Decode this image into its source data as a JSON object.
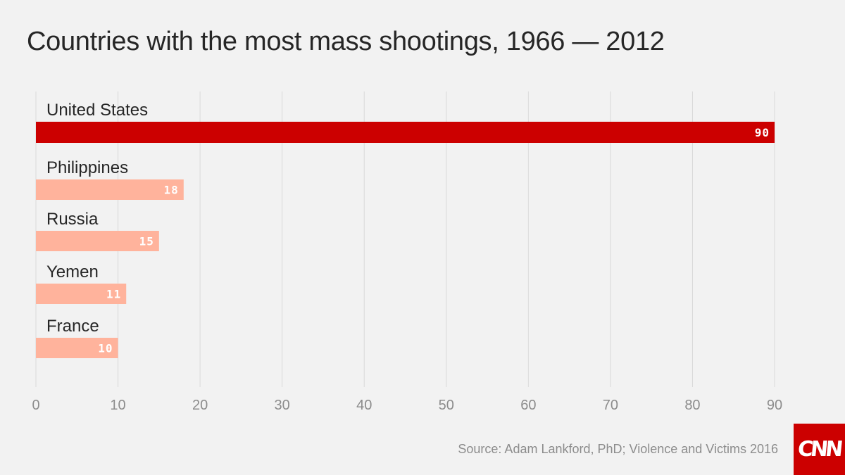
{
  "title": "Countries with the most mass shootings, 1966 — 2012",
  "source": "Source: Adam Lankford, PhD; Violence and Victims 2016",
  "logo_text": "CNN",
  "colors": {
    "highlight": "#cc0000",
    "bar": "#ffb39c",
    "grid": "#d9d9d9",
    "axis_label": "#8c8c8c",
    "category_label": "#262626",
    "value_label": "#ffffff"
  },
  "chart_data": {
    "type": "bar",
    "orientation": "horizontal",
    "title": "Countries with the most mass shootings, 1966 — 2012",
    "categories": [
      "United States",
      "Philippines",
      "Russia",
      "Yemen",
      "France"
    ],
    "values": [
      90,
      18,
      15,
      11,
      10
    ],
    "value_labels": [
      "90",
      "18",
      "15",
      "11",
      "10"
    ],
    "highlight_index": 0,
    "xlim": [
      0,
      90
    ],
    "xticks": [
      0,
      10,
      20,
      30,
      40,
      50,
      60,
      70,
      80,
      90
    ],
    "xtick_labels": [
      "0",
      "10",
      "20",
      "30",
      "40",
      "50",
      "60",
      "70",
      "80",
      "90"
    ],
    "xlabel": "",
    "ylabel": "",
    "grid": true,
    "legend": "none"
  }
}
